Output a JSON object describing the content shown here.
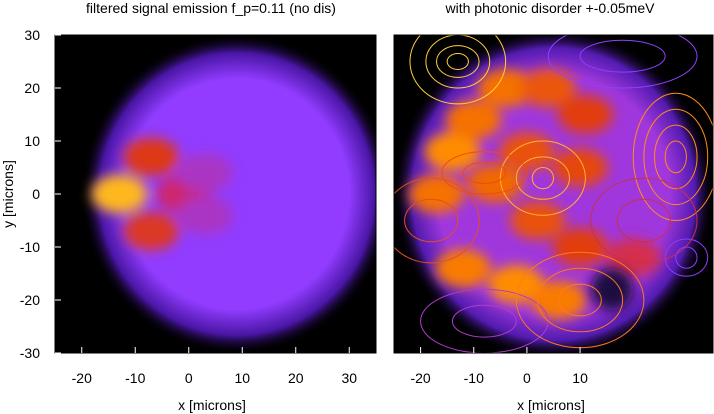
{
  "chart_data": [
    {
      "type": "heatmap",
      "title": "filtered signal emission f_p=0.11 (no dis)",
      "xlabel": "x [microns]",
      "ylabel": "y [microns]",
      "xlim": [
        -25,
        35
      ],
      "ylim": [
        -30,
        30
      ],
      "xticks": [
        "-20",
        "-10",
        "0",
        "10",
        "20",
        "30"
      ],
      "xtick_values": [
        -20,
        -10,
        0,
        10,
        20,
        30
      ],
      "yticks": [
        "30",
        "20",
        "10",
        "0",
        "-10",
        "-20",
        "-30"
      ],
      "ytick_values": [
        30,
        20,
        10,
        0,
        -10,
        -20,
        -30
      ],
      "colormap": "black-purple-red-orange-yellow",
      "background": "#000000",
      "disk": {
        "center": [
          9,
          0
        ],
        "radius": 27,
        "level": 0.38
      },
      "hotspots": [
        {
          "x": -13,
          "y": 0,
          "level": 0.92
        },
        {
          "x": -7,
          "y": 7,
          "level": 0.68
        },
        {
          "x": -7,
          "y": -7,
          "level": 0.66
        },
        {
          "x": -1,
          "y": 0,
          "level": 0.55
        },
        {
          "x": 3,
          "y": 4,
          "level": 0.45
        },
        {
          "x": 3,
          "y": -4,
          "level": 0.45
        }
      ]
    },
    {
      "type": "heatmap",
      "title": "with photonic disorder +-0.05meV",
      "xlabel": "x [microns]",
      "xlim": [
        -25,
        35
      ],
      "ylim": [
        -30,
        30
      ],
      "xticks": [
        "-20",
        "-10",
        "0",
        "10"
      ],
      "xtick_values": [
        -20,
        -10,
        0,
        10
      ],
      "colormap": "black-purple-red-orange-yellow",
      "background": "#000000",
      "disk": {
        "center": [
          5,
          0
        ],
        "radius": 28,
        "level": 0.42
      },
      "hotspots": [
        {
          "x": -14,
          "y": 8,
          "level": 0.85
        },
        {
          "x": -10,
          "y": 14,
          "level": 0.8
        },
        {
          "x": -4,
          "y": 20,
          "level": 0.8
        },
        {
          "x": 4,
          "y": 20,
          "level": 0.75
        },
        {
          "x": 11,
          "y": 15,
          "level": 0.7
        },
        {
          "x": -17,
          "y": 0,
          "level": 0.8
        },
        {
          "x": -12,
          "y": -14,
          "level": 0.82
        },
        {
          "x": -2,
          "y": -17,
          "level": 0.85
        },
        {
          "x": 6,
          "y": -20,
          "level": 0.82
        },
        {
          "x": -6,
          "y": 2,
          "level": 0.78
        },
        {
          "x": 0,
          "y": 8,
          "level": 0.74
        },
        {
          "x": 10,
          "y": 5,
          "level": 0.72
        },
        {
          "x": 2,
          "y": -5,
          "level": 0.74
        },
        {
          "x": 10,
          "y": -10,
          "level": 0.7
        },
        {
          "x": 20,
          "y": -12,
          "level": 0.6
        }
      ],
      "dark_spot": {
        "x": 16,
        "y": -18,
        "level": 0.08
      },
      "contours": [
        {
          "x": -13,
          "y": 25,
          "rx": [
            2,
            4,
            6,
            9
          ],
          "ry": [
            1.5,
            3,
            5,
            8
          ],
          "color": "#ffd23a"
        },
        {
          "x": 28,
          "y": 7,
          "rx": [
            2,
            4,
            6,
            8
          ],
          "ry": [
            3,
            6,
            9,
            12
          ],
          "color": "#ff8c1a"
        },
        {
          "x": 3,
          "y": 3,
          "rx": [
            2,
            5,
            8
          ],
          "ry": [
            2,
            4,
            7
          ],
          "color": "#ffb02e"
        },
        {
          "x": -8,
          "y": 4,
          "rx": [
            4,
            8
          ],
          "ry": [
            2,
            4
          ],
          "color": "#f04a10"
        },
        {
          "x": 22,
          "y": -5,
          "rx": [
            5,
            10
          ],
          "ry": [
            4,
            8
          ],
          "color": "#c8304a"
        },
        {
          "x": 30,
          "y": -12,
          "rx": [
            2,
            4
          ],
          "ry": [
            2,
            3.5
          ],
          "color": "#8a3cff"
        },
        {
          "x": -18,
          "y": -5,
          "rx": [
            5,
            9
          ],
          "ry": [
            4,
            8
          ],
          "color": "#e05020"
        },
        {
          "x": -8,
          "y": -24,
          "rx": [
            6,
            12
          ],
          "ry": [
            3,
            6
          ],
          "color": "#b03ccc"
        },
        {
          "x": 10,
          "y": -20,
          "rx": [
            4,
            8,
            12
          ],
          "ry": [
            3,
            6,
            9
          ],
          "color": "#ff7a1a"
        },
        {
          "x": 18,
          "y": 26,
          "rx": [
            8,
            14
          ],
          "ry": [
            3,
            6
          ],
          "color": "#9040ff"
        }
      ]
    }
  ]
}
